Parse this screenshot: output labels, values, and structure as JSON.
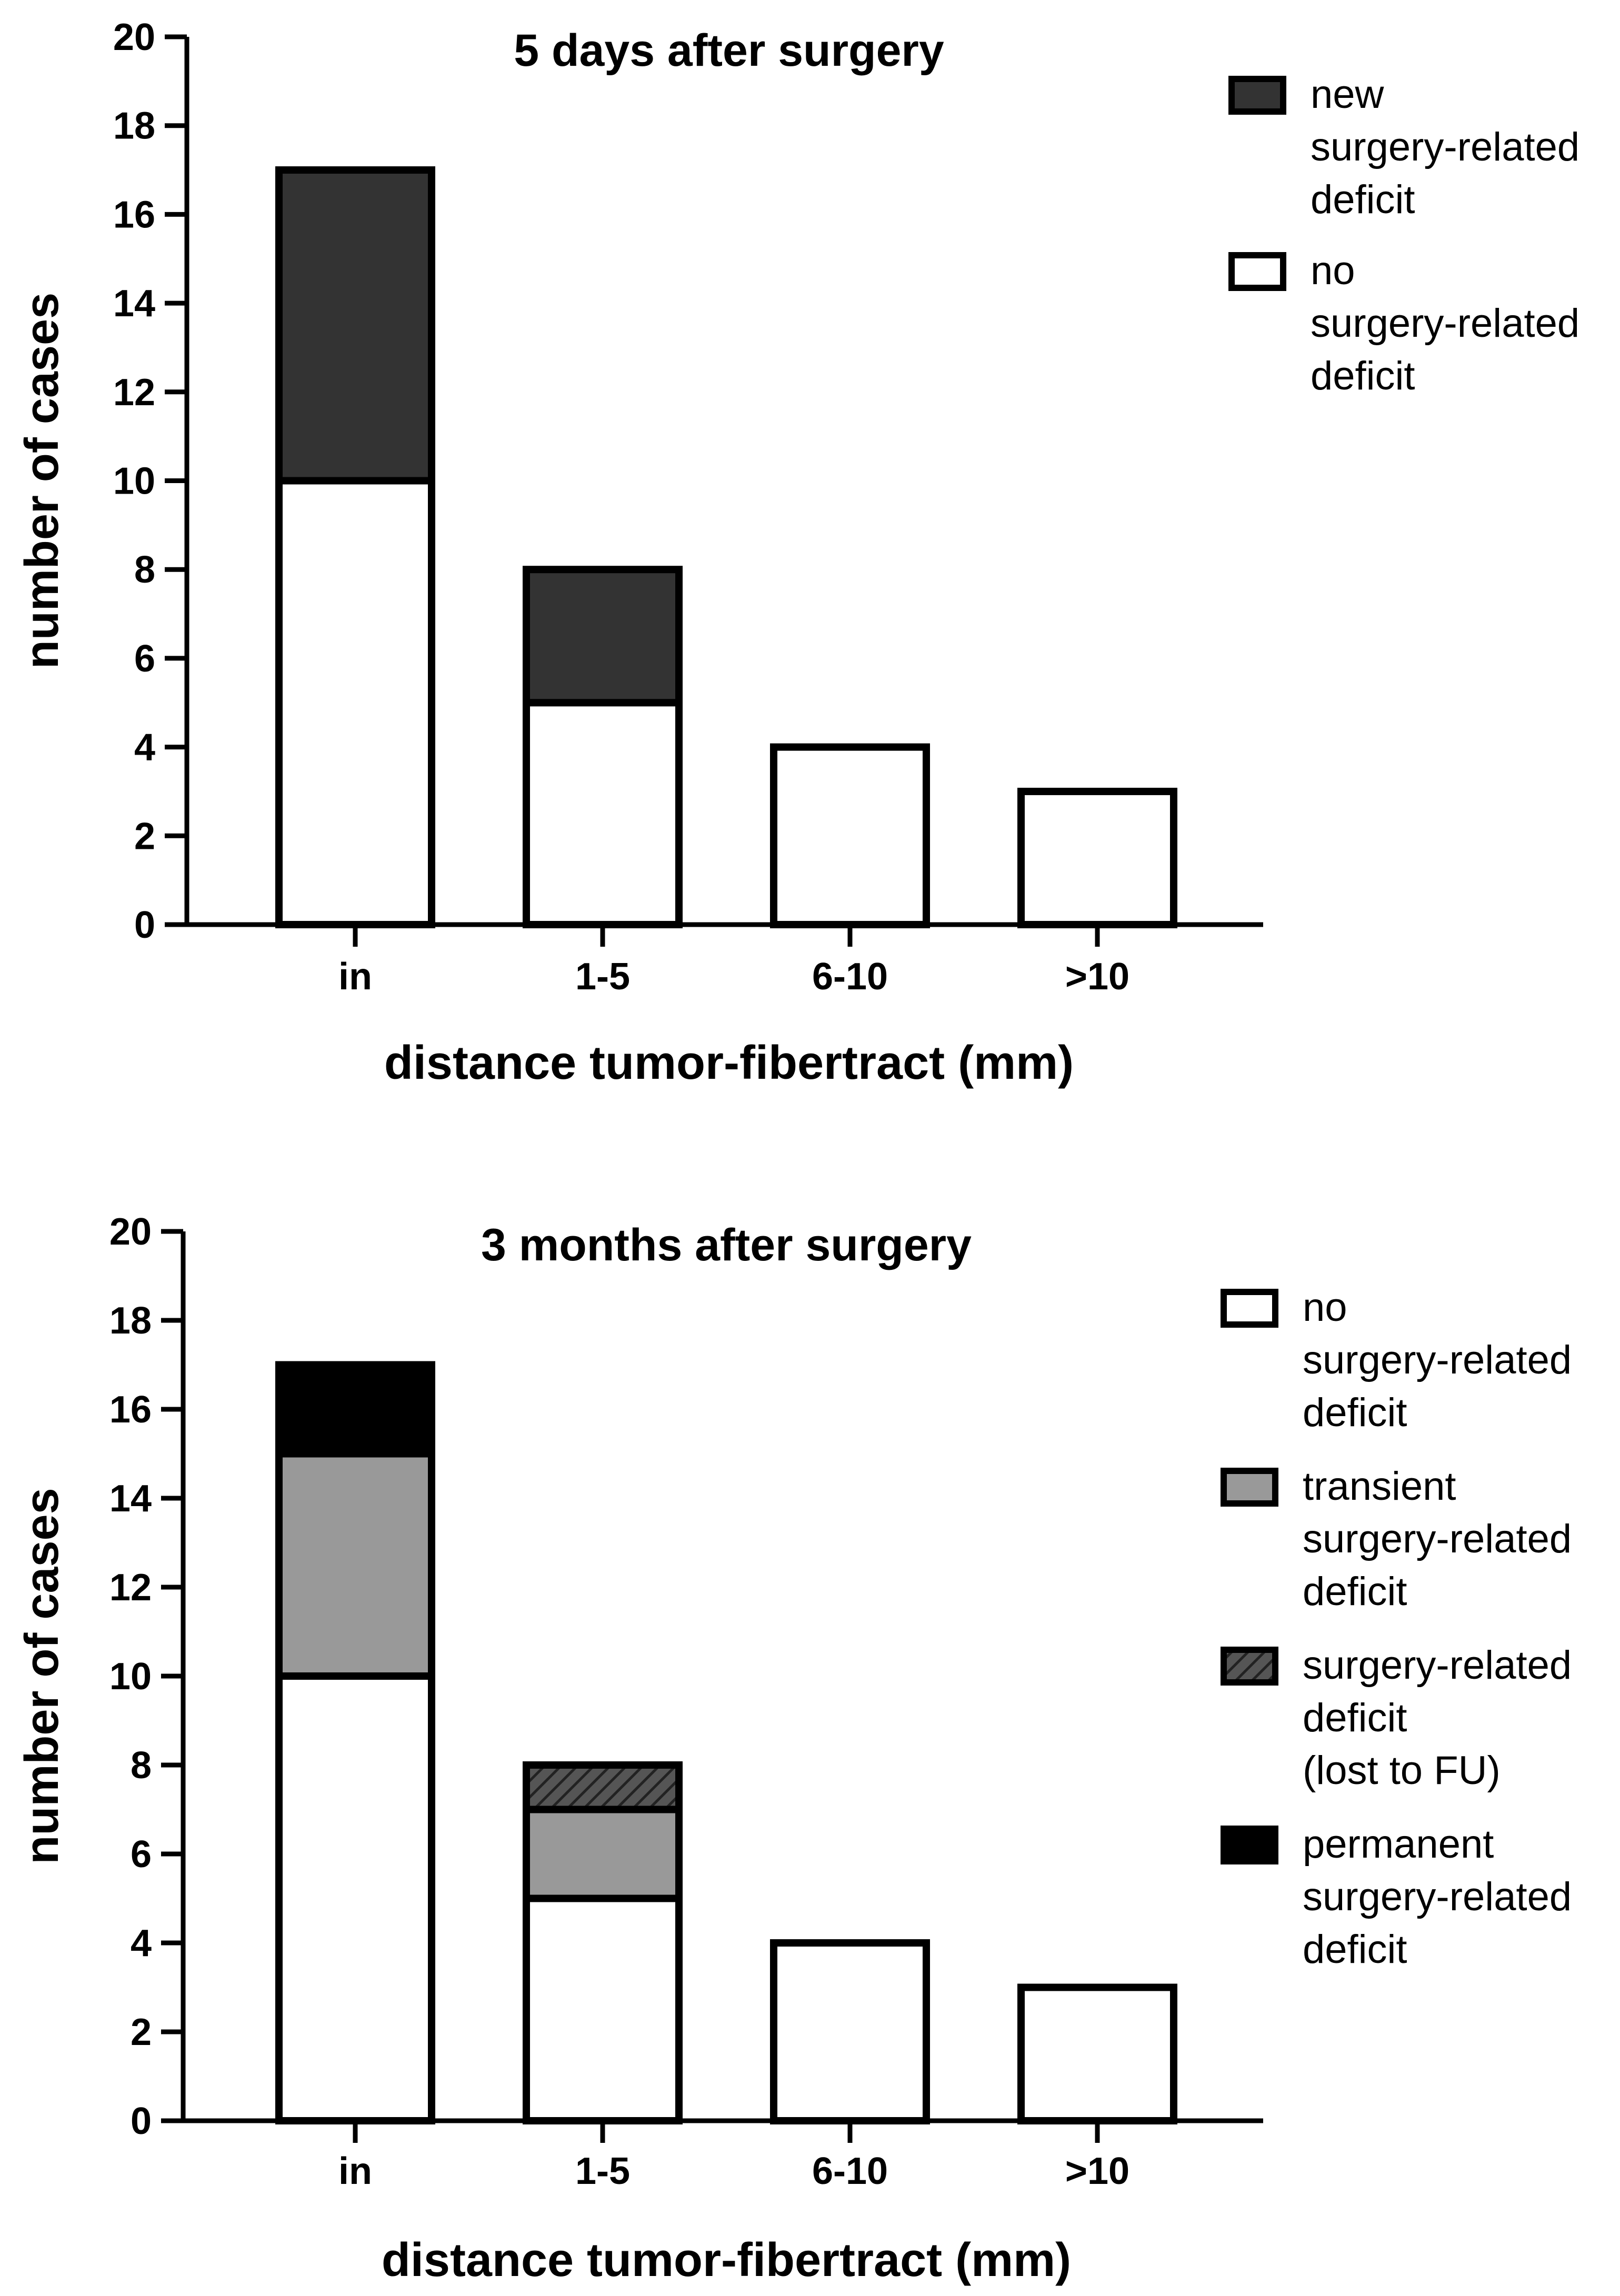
{
  "chart_data": [
    {
      "type": "bar",
      "stacked": true,
      "title": "5 days after surgery",
      "xlabel": "distance tumor-fibertract (mm)",
      "ylabel": "number of cases",
      "ylim": [
        0,
        20
      ],
      "yticks": [
        0,
        2,
        4,
        6,
        8,
        10,
        12,
        14,
        16,
        18,
        20
      ],
      "categories": [
        "in",
        "1-5",
        "6-10",
        ">10"
      ],
      "series": [
        {
          "name": "no surgery-related deficit",
          "values": [
            10,
            5,
            4,
            3
          ],
          "color": "#ffffff"
        },
        {
          "name": "new surgery-related deficit",
          "values": [
            7,
            3,
            0,
            0
          ],
          "color": "#333333"
        }
      ],
      "legend": {
        "position": "right",
        "entries": [
          {
            "series": 1,
            "lines": [
              "new",
              "surgery-related",
              "deficit"
            ]
          },
          {
            "series": 0,
            "lines": [
              "no",
              "surgery-related",
              "deficit"
            ]
          }
        ]
      }
    },
    {
      "type": "bar",
      "stacked": true,
      "title": "3 months after surgery",
      "xlabel": "distance tumor-fibertract (mm)",
      "ylabel": "number of cases",
      "ylim": [
        0,
        20
      ],
      "yticks": [
        0,
        2,
        4,
        6,
        8,
        10,
        12,
        14,
        16,
        18,
        20
      ],
      "categories": [
        "in",
        "1-5",
        "6-10",
        ">10"
      ],
      "series": [
        {
          "name": "no surgery-related deficit",
          "values": [
            10,
            5,
            4,
            3
          ],
          "color": "#ffffff"
        },
        {
          "name": "transient surgery-related deficit",
          "values": [
            5,
            2,
            0,
            0
          ],
          "color": "#999999"
        },
        {
          "name": "surgery-related deficit (lost to FU)",
          "values": [
            0,
            1,
            0,
            0
          ],
          "color": "hatch"
        },
        {
          "name": "permanent surgery-related deficit",
          "values": [
            2,
            0,
            0,
            0
          ],
          "color": "#000000"
        }
      ],
      "legend": {
        "position": "right",
        "entries": [
          {
            "series": 0,
            "lines": [
              "no",
              "surgery-related",
              "deficit"
            ]
          },
          {
            "series": 1,
            "lines": [
              "transient",
              "surgery-related",
              "deficit"
            ]
          },
          {
            "series": 2,
            "lines": [
              "surgery-related",
              "deficit",
              "(lost to FU)"
            ]
          },
          {
            "series": 3,
            "lines": [
              "permanent",
              "surgery-related",
              "deficit"
            ]
          }
        ]
      }
    }
  ]
}
